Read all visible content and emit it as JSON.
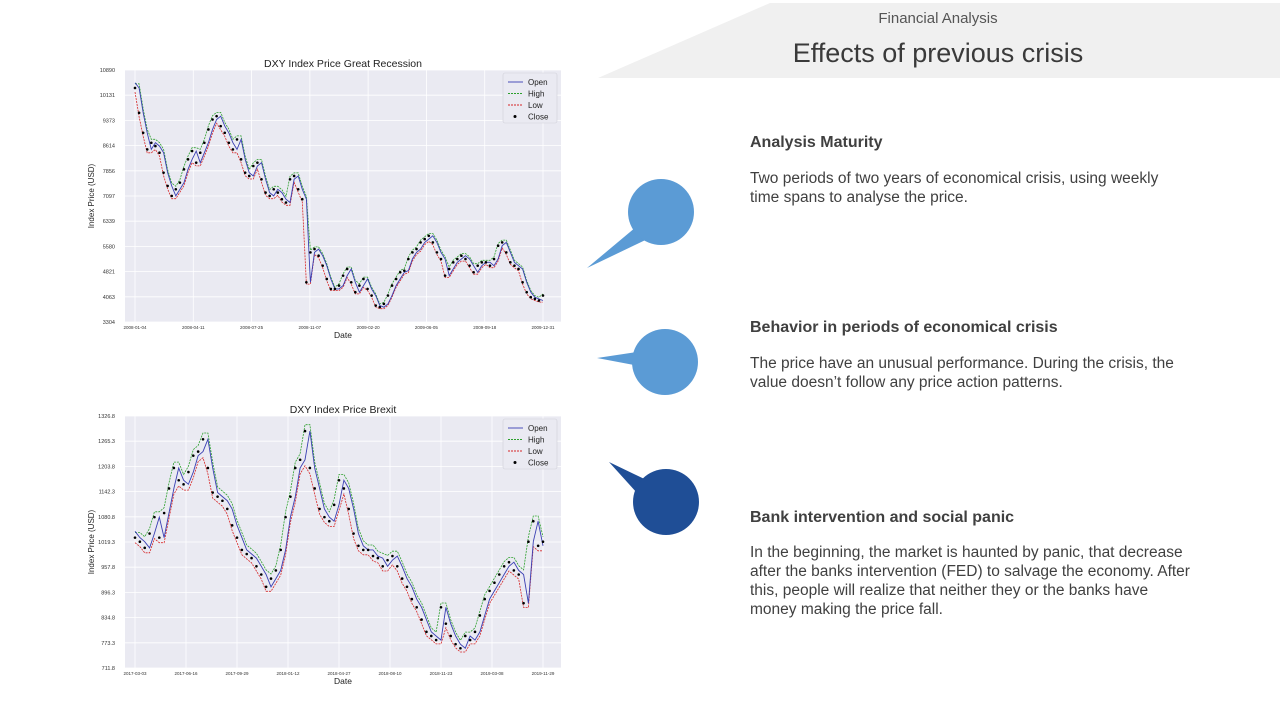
{
  "header": {
    "subtitle": "Financial Analysis",
    "title": "Effects of previous crisis"
  },
  "colors": {
    "open": "#3a3fb3",
    "high": "#2ca02c",
    "low": "#d62728",
    "close": "#000000",
    "bubble_light": "#5b9bd5",
    "bubble_dark": "#1f4e96",
    "plot_bg": "#eaeaf2"
  },
  "sections": [
    {
      "title": "Analysis Maturity",
      "body": "Two periods of two years of economical crisis, using weekly time spans to analyse the price."
    },
    {
      "title": "Behavior in periods of economical crisis",
      "body": "The price have an unusual performance. During the crisis, the value doesn’t follow any price action patterns."
    },
    {
      "title": "Bank intervention and social panic",
      "body": "In the beginning, the market is haunted by panic, that decrease after the banks intervention (FED) to salvage the economy. After this, people will realize that neither they or the banks have money making the price fall."
    }
  ],
  "chart_data": [
    {
      "type": "line",
      "title": "DXY Index Price Great Recession",
      "xlabel": "Date",
      "ylabel": "Index Price (USD)",
      "ylim": [
        3304,
        10890
      ],
      "yticks": [
        "3304",
        "4063",
        "4821",
        "5580",
        "6339",
        "7097",
        "7856",
        "8614",
        "9373",
        "10131",
        "10890"
      ],
      "xticks": [
        "2008-01-04",
        "2008-04-11",
        "2008-07-25",
        "2008-11-07",
        "2009-02-20",
        "2009-06-05",
        "2009-09-18",
        "2009-12-31"
      ],
      "grid": true,
      "legend_position": "top-right",
      "legend": [
        "Open",
        "High",
        "Low",
        "Close"
      ],
      "series": [
        {
          "name": "Close",
          "values": [
            10350,
            9600,
            9000,
            8500,
            8700,
            8600,
            8400,
            7800,
            7400,
            7100,
            7300,
            7500,
            7900,
            8200,
            8450,
            8100,
            8400,
            8700,
            9100,
            9400,
            9500,
            9200,
            9000,
            8700,
            8500,
            8800,
            8200,
            7800,
            7700,
            8000,
            8100,
            7600,
            7200,
            7100,
            7300,
            7200,
            7000,
            6900,
            7600,
            7700,
            7300,
            7000,
            4500,
            5400,
            5500,
            5300,
            5000,
            4600,
            4300,
            4300,
            4400,
            4700,
            4900,
            4500,
            4200,
            4400,
            4600,
            4300,
            4100,
            3800,
            3750,
            3850,
            4100,
            4400,
            4600,
            4800,
            4850,
            5200,
            5400,
            5500,
            5700,
            5800,
            5900,
            5700,
            5400,
            5200,
            4700,
            4900,
            5100,
            5200,
            5300,
            5200,
            5000,
            4800,
            5000,
            5100,
            5100,
            5000,
            5200,
            5600,
            5700,
            5400,
            5100,
            5000,
            4900,
            4500,
            4200,
            4050,
            4000,
            3950,
            4100
          ]
        }
      ]
    },
    {
      "type": "line",
      "title": "DXY Index Price Brexit",
      "xlabel": "Date",
      "ylabel": "Index Price (USD)",
      "ylim": [
        711.8,
        1326.8
      ],
      "yticks": [
        "711.8",
        "773.3",
        "834.8",
        "896.3",
        "957.8",
        "1019.3",
        "1080.8",
        "1142.3",
        "1203.8",
        "1265.3",
        "1326.8"
      ],
      "xticks": [
        "2017-03-03",
        "2017-06-16",
        "2017-09-29",
        "2018-01-12",
        "2018-04-27",
        "2018-08-10",
        "2018-11-23",
        "2019-03-08",
        "2019-11-29"
      ],
      "grid": true,
      "legend_position": "top-right",
      "legend": [
        "Open",
        "High",
        "Low",
        "Close"
      ],
      "series": [
        {
          "name": "Close",
          "values": [
            1030,
            1020,
            1005,
            1040,
            1080,
            1030,
            1090,
            1150,
            1200,
            1170,
            1160,
            1190,
            1230,
            1240,
            1270,
            1200,
            1140,
            1130,
            1120,
            1100,
            1060,
            1030,
            1000,
            990,
            980,
            960,
            940,
            910,
            930,
            950,
            1000,
            1080,
            1130,
            1200,
            1220,
            1290,
            1200,
            1150,
            1100,
            1080,
            1070,
            1110,
            1170,
            1150,
            1100,
            1040,
            1010,
            1000,
            1000,
            985,
            980,
            960,
            975,
            985,
            960,
            930,
            910,
            880,
            860,
            830,
            800,
            790,
            780,
            860,
            820,
            790,
            770,
            760,
            790,
            780,
            800,
            840,
            880,
            900,
            920,
            940,
            960,
            970,
            950,
            940,
            870,
            1020,
            1070,
            1010,
            1020
          ]
        }
      ]
    }
  ]
}
